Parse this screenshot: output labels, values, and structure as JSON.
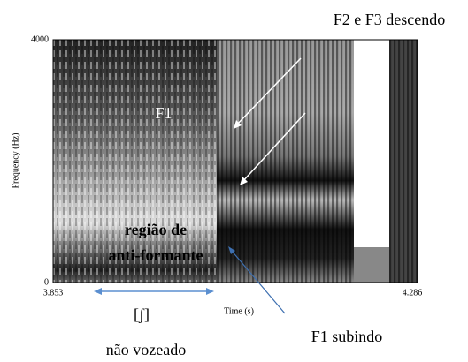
{
  "axes": {
    "y_label": "Frequency (Hz)",
    "y_top": "4000",
    "y_bottom": "0",
    "x_label": "Time (s)",
    "x_left": "3.853",
    "x_right": "4.286"
  },
  "annotations": {
    "top_right": "F2 e F3 descendo",
    "f1": "F1",
    "region_line1": "região de",
    "region_line2": "anti-formante",
    "phoneme": "[ʃ]",
    "unvoiced": "não vozeado",
    "f1_rising": "F1 subindo"
  }
}
